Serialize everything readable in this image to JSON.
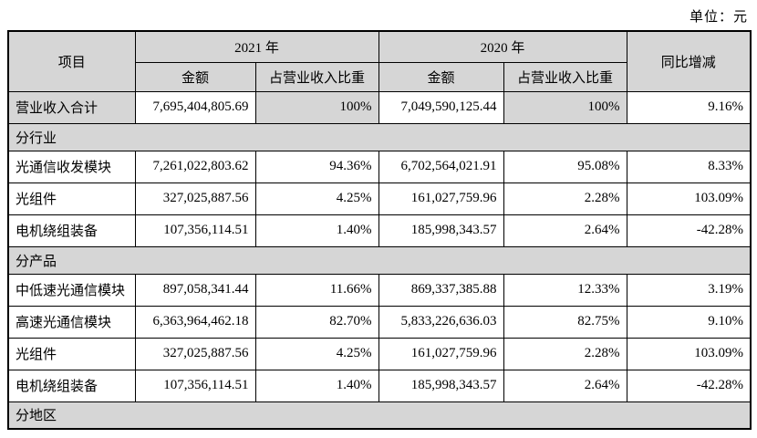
{
  "unit_label": "单位：元",
  "table": {
    "header": {
      "item": "项目",
      "year_2021": "2021 年",
      "year_2020": "2020 年",
      "yoy": "同比增减",
      "amount": "金额",
      "pct_of_revenue": "占营业收入比重"
    },
    "colors": {
      "header_bg": "#d6d6d6",
      "row_bg": "#ffffff",
      "border": "#000000"
    },
    "rows": [
      {
        "type": "data",
        "highlight": true,
        "label": "营业收入合计",
        "a2021": "7,695,404,805.69",
        "p2021": "100%",
        "a2020": "7,049,590,125.44",
        "p2020": "100%",
        "yoy": "9.16%"
      },
      {
        "type": "section",
        "label": "分行业"
      },
      {
        "type": "data",
        "label": "光通信收发模块",
        "a2021": "7,261,022,803.62",
        "p2021": "94.36%",
        "a2020": "6,702,564,021.91",
        "p2020": "95.08%",
        "yoy": "8.33%"
      },
      {
        "type": "data",
        "label": "光组件",
        "a2021": "327,025,887.56",
        "p2021": "4.25%",
        "a2020": "161,027,759.96",
        "p2020": "2.28%",
        "yoy": "103.09%"
      },
      {
        "type": "data",
        "label": "电机绕组装备",
        "a2021": "107,356,114.51",
        "p2021": "1.40%",
        "a2020": "185,998,343.57",
        "p2020": "2.64%",
        "yoy": "-42.28%"
      },
      {
        "type": "section",
        "label": "分产品"
      },
      {
        "type": "data",
        "label": "中低速光通信模块",
        "a2021": "897,058,341.44",
        "p2021": "11.66%",
        "a2020": "869,337,385.88",
        "p2020": "12.33%",
        "yoy": "3.19%"
      },
      {
        "type": "data",
        "label": "高速光通信模块",
        "a2021": "6,363,964,462.18",
        "p2021": "82.70%",
        "a2020": "5,833,226,636.03",
        "p2020": "82.75%",
        "yoy": "9.10%"
      },
      {
        "type": "data",
        "label": "光组件",
        "a2021": "327,025,887.56",
        "p2021": "4.25%",
        "a2020": "161,027,759.96",
        "p2020": "2.28%",
        "yoy": "103.09%"
      },
      {
        "type": "data",
        "label": "电机绕组装备",
        "a2021": "107,356,114.51",
        "p2021": "1.40%",
        "a2020": "185,998,343.57",
        "p2020": "2.64%",
        "yoy": "-42.28%"
      },
      {
        "type": "section",
        "label": "分地区"
      }
    ]
  }
}
